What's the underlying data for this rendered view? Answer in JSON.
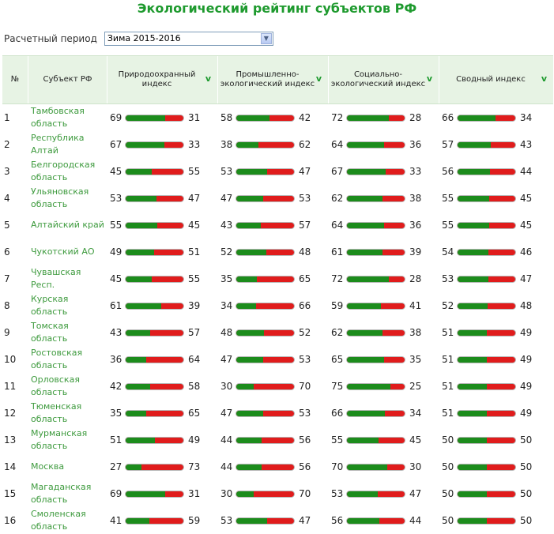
{
  "page_title": "Экологический рейтинг субъектов РФ",
  "period": {
    "label": "Расчетный период",
    "value": "Зима 2015-2016"
  },
  "colors": {
    "accent": "#1e9a2e",
    "bar_green": "#1c8c1c",
    "bar_red": "#e01c1c",
    "header_bg": "#e7f3e4",
    "link": "#3d9a3d"
  },
  "table": {
    "headers": {
      "num": "№",
      "region": "Субъект РФ",
      "nature": "Природоохранный индекс",
      "industry": "Промышленно-экологический индекс",
      "social": "Социально-экологический индекс",
      "summary": "Сводный индекс"
    },
    "sort_icon": "chevron-down-icon",
    "rows": [
      {
        "n": "1",
        "region": "Тамбовская область",
        "v": [
          [
            69,
            31
          ],
          [
            58,
            42
          ],
          [
            72,
            28
          ],
          [
            66,
            34
          ]
        ]
      },
      {
        "n": "2",
        "region": "Республика Алтай",
        "v": [
          [
            67,
            33
          ],
          [
            38,
            62
          ],
          [
            64,
            36
          ],
          [
            57,
            43
          ]
        ]
      },
      {
        "n": "3",
        "region": "Белгородская область",
        "v": [
          [
            45,
            55
          ],
          [
            53,
            47
          ],
          [
            67,
            33
          ],
          [
            56,
            44
          ]
        ]
      },
      {
        "n": "4",
        "region": "Ульяновская область",
        "v": [
          [
            53,
            47
          ],
          [
            47,
            53
          ],
          [
            62,
            38
          ],
          [
            55,
            45
          ]
        ]
      },
      {
        "n": "5",
        "region": "Алтайский край",
        "v": [
          [
            55,
            45
          ],
          [
            43,
            57
          ],
          [
            64,
            36
          ],
          [
            55,
            45
          ]
        ]
      },
      {
        "n": "6",
        "region": "Чукотский АО",
        "v": [
          [
            49,
            51
          ],
          [
            52,
            48
          ],
          [
            61,
            39
          ],
          [
            54,
            46
          ]
        ]
      },
      {
        "n": "7",
        "region": "Чувашская Респ.",
        "v": [
          [
            45,
            55
          ],
          [
            35,
            65
          ],
          [
            72,
            28
          ],
          [
            53,
            47
          ]
        ]
      },
      {
        "n": "8",
        "region": "Курская область",
        "v": [
          [
            61,
            39
          ],
          [
            34,
            66
          ],
          [
            59,
            41
          ],
          [
            52,
            48
          ]
        ]
      },
      {
        "n": "9",
        "region": "Томская область",
        "v": [
          [
            43,
            57
          ],
          [
            48,
            52
          ],
          [
            62,
            38
          ],
          [
            51,
            49
          ]
        ]
      },
      {
        "n": "10",
        "region": "Ростовская область",
        "v": [
          [
            36,
            64
          ],
          [
            47,
            53
          ],
          [
            65,
            35
          ],
          [
            51,
            49
          ]
        ]
      },
      {
        "n": "11",
        "region": "Орловская область",
        "v": [
          [
            42,
            58
          ],
          [
            30,
            70
          ],
          [
            75,
            25
          ],
          [
            51,
            49
          ]
        ]
      },
      {
        "n": "12",
        "region": "Тюменская область",
        "v": [
          [
            35,
            65
          ],
          [
            47,
            53
          ],
          [
            66,
            34
          ],
          [
            51,
            49
          ]
        ]
      },
      {
        "n": "13",
        "region": "Мурманская область",
        "v": [
          [
            51,
            49
          ],
          [
            44,
            56
          ],
          [
            55,
            45
          ],
          [
            50,
            50
          ]
        ]
      },
      {
        "n": "14",
        "region": "Москва",
        "v": [
          [
            27,
            73
          ],
          [
            44,
            56
          ],
          [
            70,
            30
          ],
          [
            50,
            50
          ]
        ]
      },
      {
        "n": "15",
        "region": "Магаданская область",
        "v": [
          [
            69,
            31
          ],
          [
            30,
            70
          ],
          [
            53,
            47
          ],
          [
            50,
            50
          ]
        ]
      },
      {
        "n": "16",
        "region": "Смоленская область",
        "v": [
          [
            41,
            59
          ],
          [
            53,
            47
          ],
          [
            56,
            44
          ],
          [
            50,
            50
          ]
        ]
      }
    ]
  }
}
